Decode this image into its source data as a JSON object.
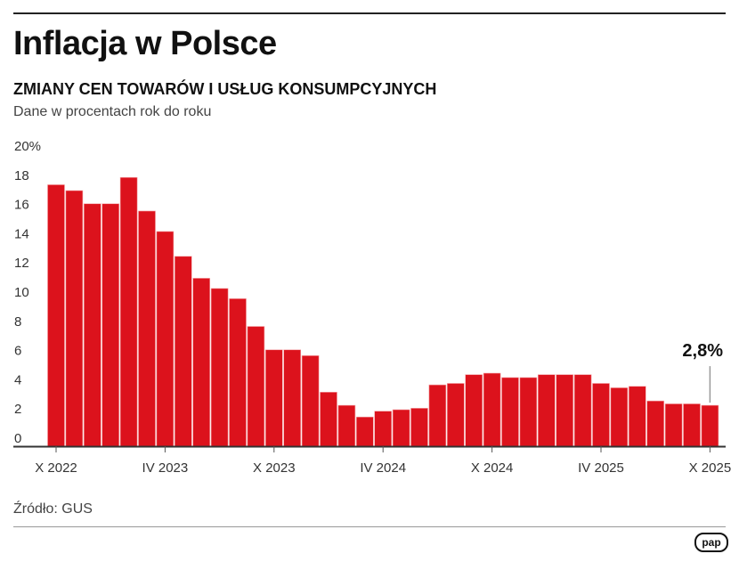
{
  "title": "Inflacja w Polsce",
  "subtitle": "ZMIANY CEN TOWARÓW I USŁUG KONSUMPCYJNYCH",
  "note": "Dane w procentach rok do roku",
  "source": "Źródło: GUS",
  "logo": "pap",
  "colors": {
    "bar": "#dc121c",
    "axis": "#333333"
  },
  "chart_data": {
    "type": "bar",
    "ylim": [
      0,
      20
    ],
    "yticks": [
      0,
      2,
      4,
      6,
      8,
      10,
      12,
      14,
      16,
      18,
      20
    ],
    "ytick_labels": [
      "0",
      "2",
      "4",
      "6",
      "8",
      "10",
      "12",
      "14",
      "16",
      "18",
      "20%"
    ],
    "grid": false,
    "categories": [
      "X 2022",
      "XI 2022",
      "XII 2022",
      "I 2023",
      "II 2023",
      "III 2023",
      "IV 2023",
      "V 2023",
      "VI 2023",
      "VII 2023",
      "VIII 2023",
      "IX 2023",
      "X 2023",
      "XI 2023",
      "XII 2023",
      "I 2024",
      "II 2024",
      "III 2024",
      "IV 2024",
      "V 2024",
      "VI 2024",
      "VII 2024",
      "VIII 2024",
      "IX 2024",
      "X 2024",
      "XI 2024",
      "XII 2024",
      "I 2025",
      "II 2025",
      "III 2025",
      "IV 2025",
      "V 2025",
      "VI 2025",
      "VII 2025",
      "VIII 2025",
      "IX 2025",
      "X 2025"
    ],
    "values": [
      17.9,
      17.5,
      16.6,
      16.6,
      18.4,
      16.1,
      14.7,
      13.0,
      11.5,
      10.8,
      10.1,
      8.2,
      6.6,
      6.6,
      6.2,
      3.7,
      2.8,
      2.0,
      2.4,
      2.5,
      2.6,
      4.2,
      4.3,
      4.9,
      5.0,
      4.7,
      4.7,
      4.9,
      4.9,
      4.9,
      4.3,
      4.0,
      4.1,
      3.1,
      2.9,
      2.9,
      2.8
    ],
    "xtick_labels": [
      {
        "category": "X 2022",
        "label": "X 2022"
      },
      {
        "category": "IV 2023",
        "label": "IV 2023"
      },
      {
        "category": "X 2023",
        "label": "X 2023"
      },
      {
        "category": "IV 2024",
        "label": "IV 2024"
      },
      {
        "category": "X 2024",
        "label": "X 2024"
      },
      {
        "category": "IV 2025",
        "label": "IV 2025"
      },
      {
        "category": "X 2025",
        "label": "X 2025"
      }
    ],
    "annotation": {
      "category": "X 2025",
      "label": "2,8%"
    }
  }
}
